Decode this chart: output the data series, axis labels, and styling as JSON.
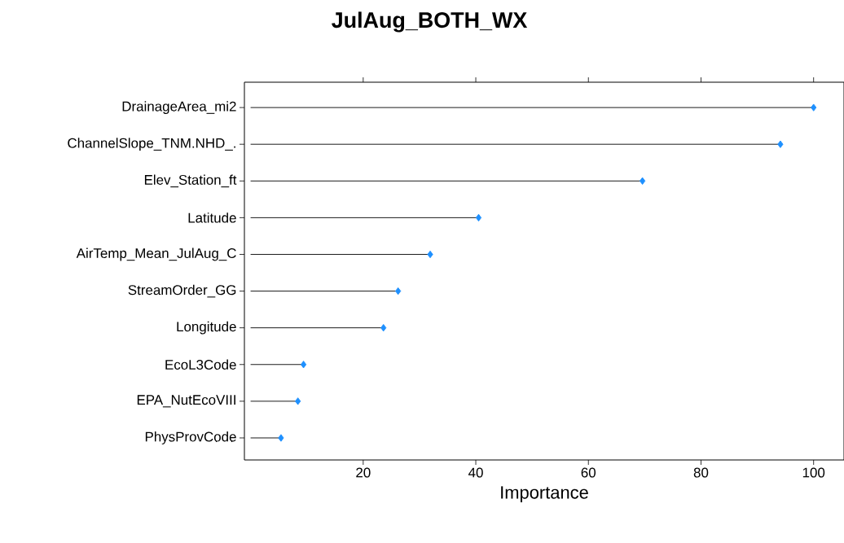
{
  "chart_data": {
    "type": "lollipop",
    "orientation": "horizontal",
    "title": "JulAug_BOTH_WX",
    "xlabel": "Importance",
    "categories": [
      "DrainageArea_mi2",
      "ChannelSlope_TNM.NHD_.",
      "Elev_Station_ft",
      "Latitude",
      "AirTemp_Mean_JulAug_C",
      "StreamOrder_GG",
      "Longitude",
      "EcoL3Code",
      "EPA_NutEcoVIII",
      "PhysProvCode"
    ],
    "values": [
      100,
      94.1,
      69.6,
      40.5,
      31.9,
      26.2,
      23.6,
      9.4,
      8.4,
      5.4
    ],
    "color": "#1e90ff",
    "marker": "diamond",
    "xlim": [
      -1.1,
      105.4
    ],
    "xticks": [
      20,
      40,
      60,
      80,
      100
    ]
  }
}
